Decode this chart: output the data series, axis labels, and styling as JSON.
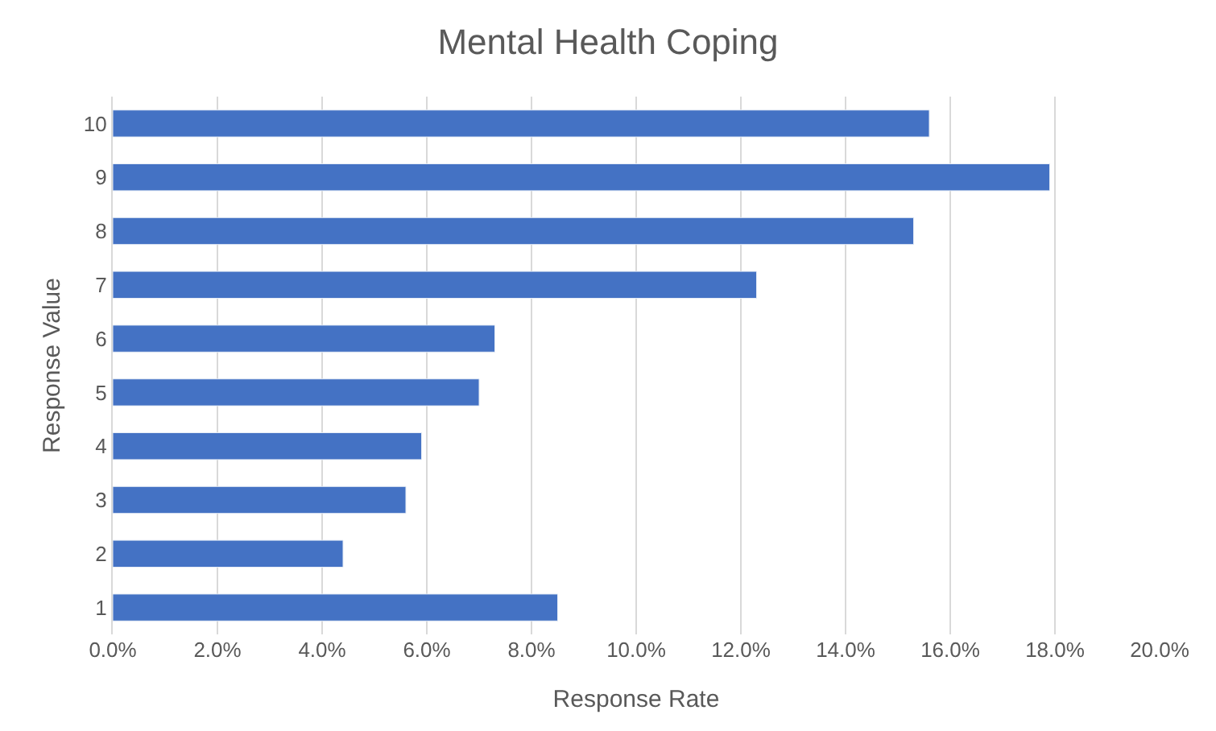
{
  "chart_data": {
    "type": "bar",
    "orientation": "horizontal",
    "title": "Mental Health Coping",
    "xlabel": "Response Rate",
    "ylabel": "Response Value",
    "categories": [
      "10",
      "9",
      "8",
      "7",
      "6",
      "5",
      "4",
      "3",
      "2",
      "1"
    ],
    "values": [
      15.6,
      17.9,
      15.3,
      12.3,
      7.3,
      7.0,
      5.9,
      5.6,
      4.4,
      8.5
    ],
    "color": "#4472c4",
    "xlim": [
      0,
      20
    ],
    "xticks": [
      {
        "value": 0,
        "label": "0.0%"
      },
      {
        "value": 2,
        "label": "2.0%"
      },
      {
        "value": 4,
        "label": "4.0%"
      },
      {
        "value": 6,
        "label": "6.0%"
      },
      {
        "value": 8,
        "label": "8.0%"
      },
      {
        "value": 10,
        "label": "10.0%"
      },
      {
        "value": 12,
        "label": "12.0%"
      },
      {
        "value": 14,
        "label": "14.0%"
      },
      {
        "value": 16,
        "label": "16.0%"
      },
      {
        "value": 18,
        "label": "18.0%"
      },
      {
        "value": 20,
        "label": "20.0%"
      }
    ],
    "grid": "x"
  }
}
